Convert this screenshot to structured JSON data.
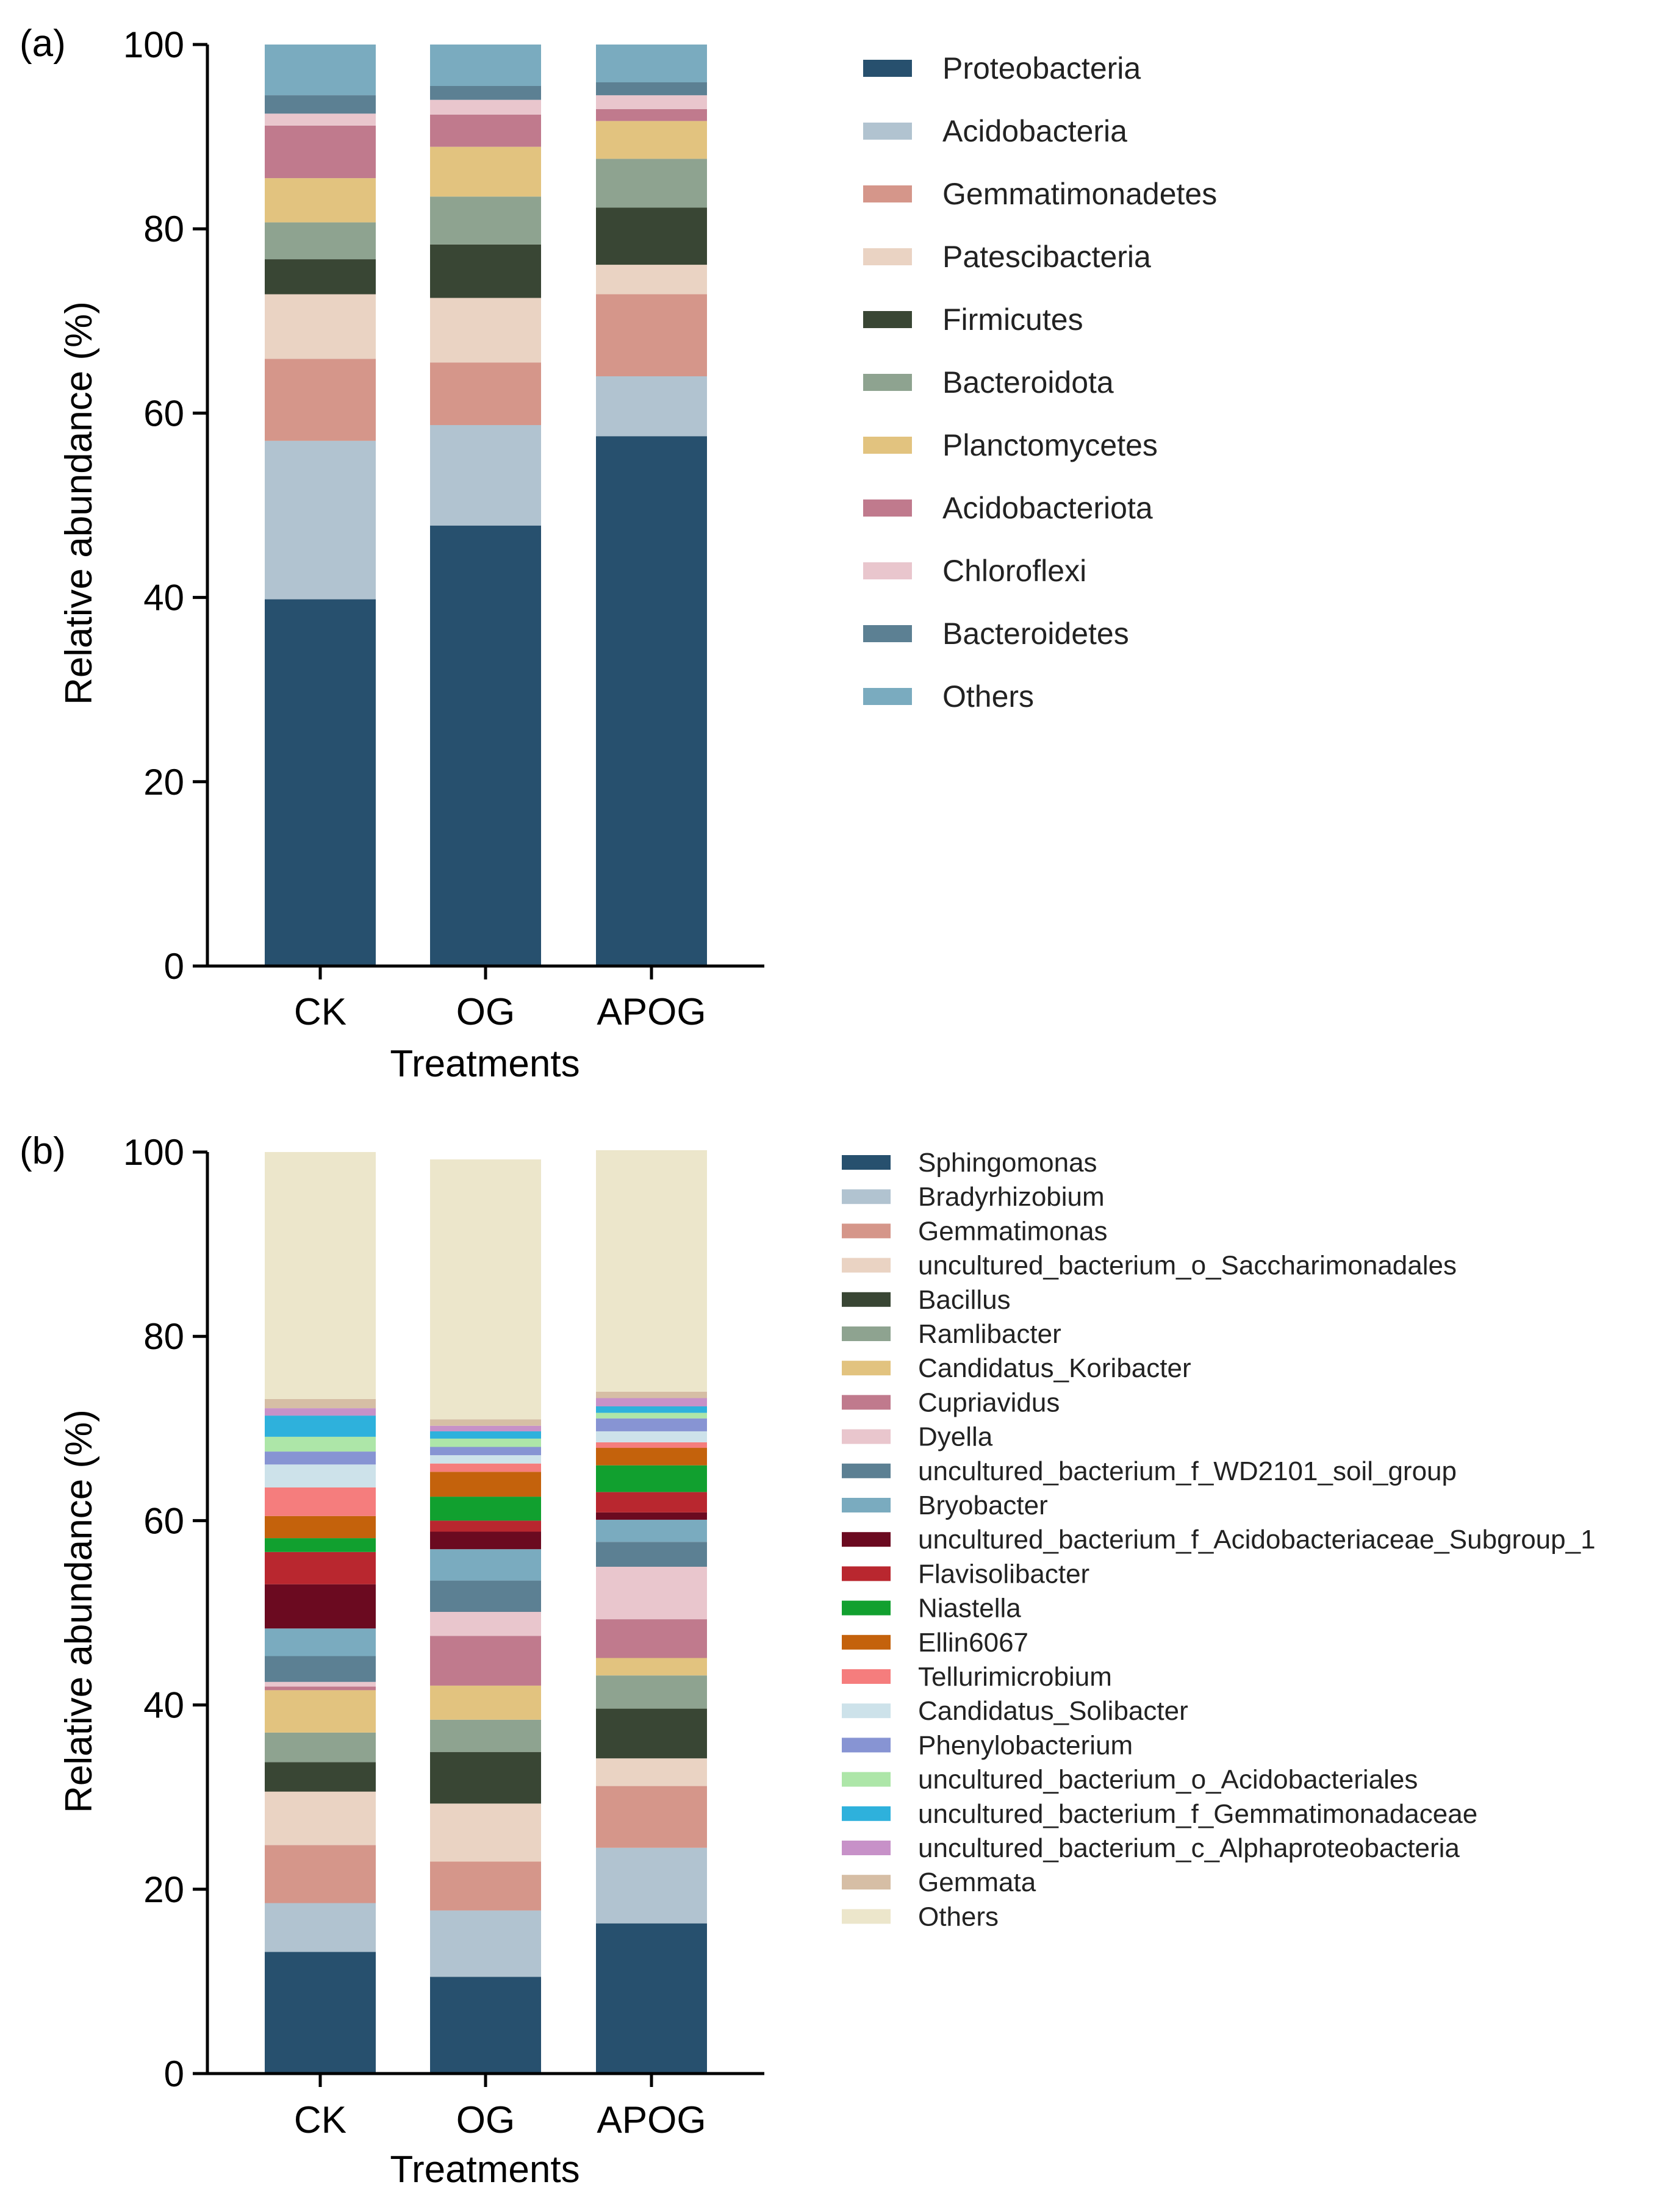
{
  "figure": {
    "panel_labels": [
      "(a)",
      "(b)"
    ]
  },
  "chart_data": [
    {
      "type": "bar",
      "stacked": true,
      "panel": "(a)",
      "title": "",
      "xlabel": "Treatments",
      "ylabel": "Relative abundance (%)",
      "ylim": [
        0,
        100
      ],
      "yticks": [
        "0",
        "20",
        "40",
        "60",
        "80",
        "100"
      ],
      "legend_position": "right",
      "categories": [
        "CK",
        "OG",
        "APOG"
      ],
      "series": [
        {
          "name": "Proteobacteria",
          "color": "#27506e",
          "values": [
            39.8,
            47.8,
            57.5
          ]
        },
        {
          "name": "Acidobacteria",
          "color": "#b1c3d0",
          "values": [
            17.2,
            10.9,
            6.5
          ]
        },
        {
          "name": "Gemmatimonadetes",
          "color": "#d5968a",
          "values": [
            8.9,
            6.8,
            8.9
          ]
        },
        {
          "name": "Patescibacteria",
          "color": "#ead3c3",
          "values": [
            7.0,
            7.0,
            3.2
          ]
        },
        {
          "name": "Firmicutes",
          "color": "#394634",
          "values": [
            3.8,
            5.8,
            6.2
          ]
        },
        {
          "name": "Bacteroidota",
          "color": "#8ea390",
          "values": [
            4.0,
            5.2,
            5.3
          ]
        },
        {
          "name": "Planctomycetes",
          "color": "#e2c37f",
          "values": [
            4.8,
            5.4,
            4.1
          ]
        },
        {
          "name": "Acidobacteriota",
          "color": "#c07a8d",
          "values": [
            5.7,
            3.5,
            1.3
          ]
        },
        {
          "name": "Chloroflexi",
          "color": "#e9c6cd",
          "values": [
            1.3,
            1.6,
            1.5
          ]
        },
        {
          "name": "Bacteroidetes",
          "color": "#5c8093",
          "values": [
            2.0,
            1.5,
            1.4
          ]
        },
        {
          "name": "Others",
          "color": "#7aabbf",
          "values": [
            5.5,
            4.5,
            4.1
          ]
        }
      ]
    },
    {
      "type": "bar",
      "stacked": true,
      "panel": "(b)",
      "title": "",
      "xlabel": "Treatments",
      "ylabel": "Relative abundance (%)",
      "ylim": [
        0,
        100
      ],
      "yticks": [
        "0",
        "20",
        "40",
        "60",
        "80",
        "100"
      ],
      "legend_position": "right",
      "categories": [
        "CK",
        "OG",
        "APOG"
      ],
      "series": [
        {
          "name": "Sphingomonas",
          "color": "#27506e",
          "values": [
            13.2,
            10.5,
            16.3
          ]
        },
        {
          "name": "Bradyrhizobium",
          "color": "#b1c3d0",
          "values": [
            5.3,
            7.2,
            8.2
          ]
        },
        {
          "name": "Gemmatimonas",
          "color": "#d5968a",
          "values": [
            6.3,
            5.3,
            6.7
          ]
        },
        {
          "name": "uncultured_bacterium_o_Saccharimonadales",
          "color": "#ead3c3",
          "values": [
            5.8,
            6.3,
            3.0
          ]
        },
        {
          "name": "Bacillus",
          "color": "#394634",
          "values": [
            3.2,
            5.6,
            5.4
          ]
        },
        {
          "name": "Ramlibacter",
          "color": "#8ea390",
          "values": [
            3.2,
            3.5,
            3.6
          ]
        },
        {
          "name": "Candidatus_Koribacter",
          "color": "#e2c37f",
          "values": [
            4.6,
            3.7,
            1.9
          ]
        },
        {
          "name": "Cupriavidus",
          "color": "#c07a8d",
          "values": [
            0.4,
            5.4,
            4.2
          ]
        },
        {
          "name": "Dyella",
          "color": "#e9c6cd",
          "values": [
            0.5,
            2.6,
            5.7
          ]
        },
        {
          "name": "uncultured_bacterium_f_WD2101_soil_group",
          "color": "#5c8093",
          "values": [
            2.8,
            3.4,
            2.7
          ]
        },
        {
          "name": "Bryobacter",
          "color": "#7aabbf",
          "values": [
            3.0,
            3.4,
            2.4
          ]
        },
        {
          "name": "uncultured_bacterium_f_Acidobacteriaceae_Subgroup_1",
          "color": "#6b0a20",
          "values": [
            4.8,
            1.9,
            0.8
          ]
        },
        {
          "name": "Flavisolibacter",
          "color": "#b9272f",
          "values": [
            3.5,
            1.2,
            2.2
          ]
        },
        {
          "name": "Niastella",
          "color": "#11a02f",
          "values": [
            1.5,
            2.6,
            2.9
          ]
        },
        {
          "name": "Ellin6067",
          "color": "#c4620c",
          "values": [
            2.4,
            2.7,
            1.9
          ]
        },
        {
          "name": "Tellurimicrobium",
          "color": "#f57d7d",
          "values": [
            3.1,
            0.9,
            0.6
          ]
        },
        {
          "name": "Candidatus_Solibacter",
          "color": "#cde2ea",
          "values": [
            2.5,
            0.9,
            1.2
          ]
        },
        {
          "name": "Phenylobacterium",
          "color": "#8794d3",
          "values": [
            1.4,
            0.9,
            1.4
          ]
        },
        {
          "name": "uncultured_bacterium_o_Acidobacteriales",
          "color": "#ade6a8",
          "values": [
            1.6,
            0.9,
            0.6
          ]
        },
        {
          "name": "uncultured_bacterium_f_Gemmatimonadaceae",
          "color": "#2eb1dc",
          "values": [
            2.3,
            0.8,
            0.7
          ]
        },
        {
          "name": "uncultured_bacterium_c_Alphaproteobacteria",
          "color": "#c791c8",
          "values": [
            0.8,
            0.6,
            0.9
          ]
        },
        {
          "name": "Gemmata",
          "color": "#d6bea5",
          "values": [
            1.0,
            0.7,
            0.7
          ]
        },
        {
          "name": "Others",
          "color": "#ece6cb",
          "values": [
            26.8,
            28.2,
            26.2
          ]
        }
      ]
    }
  ]
}
